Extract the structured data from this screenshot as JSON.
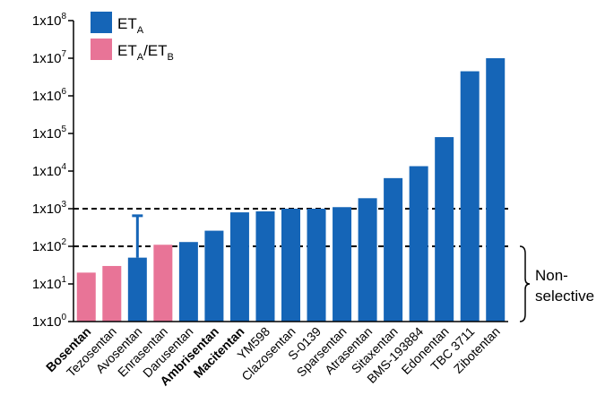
{
  "chart_data": {
    "type": "bar",
    "y_scale": "log",
    "ylim": [
      1,
      100000000
    ],
    "y_ticks": [
      {
        "base": "1x10",
        "exp": "0"
      },
      {
        "base": "1x10",
        "exp": "1"
      },
      {
        "base": "1x10",
        "exp": "2"
      },
      {
        "base": "1x10",
        "exp": "3"
      },
      {
        "base": "1x10",
        "exp": "4"
      },
      {
        "base": "1x10",
        "exp": "5"
      },
      {
        "base": "1x10",
        "exp": "6"
      },
      {
        "base": "1x10",
        "exp": "7"
      },
      {
        "base": "1x10",
        "exp": "8"
      }
    ],
    "categories": [
      "Bosentan",
      "Tezosentan",
      "Avosentan",
      "Enrasentan",
      "Darusentan",
      "Ambrisentan",
      "Macitentan",
      "YM598",
      "Clazosentan",
      "S-0139",
      "Sparsentan",
      "Atrasentan",
      "Sitaxentan",
      "BMS-193884",
      "Edonentan",
      "TBC 3711",
      "Zibotentan"
    ],
    "bold_categories": [
      "Bosentan",
      "Ambrisentan",
      "Macitentan"
    ],
    "values": [
      20,
      30,
      50,
      110,
      130,
      260,
      800,
      850,
      1000,
      1000,
      1100,
      1900,
      6500,
      13500,
      80000,
      4500000,
      10000000
    ],
    "selectivity": [
      "ETA/ETB",
      "ETA/ETB",
      "ETA",
      "ETA/ETB",
      "ETA",
      "ETA",
      "ETA",
      "ETA",
      "ETA",
      "ETA",
      "ETA",
      "ETA",
      "ETA",
      "ETA",
      "ETA",
      "ETA",
      "ETA"
    ],
    "error_bars": [
      {
        "category": "Avosentan",
        "upper": 650
      }
    ],
    "reference_lines": [
      100,
      1000
    ],
    "legend": [
      {
        "key": "ETA",
        "main": "ET",
        "sub": "A",
        "main2": "",
        "sub2": "",
        "color": "#1565b7"
      },
      {
        "key": "ETA/ETB",
        "main": "ET",
        "sub": "A",
        "main2": "/ET",
        "sub2": "B",
        "color": "#e87497"
      }
    ],
    "legend_position": "top-left",
    "annotation": {
      "line1": "Non-",
      "line2": "selective",
      "range": [
        1,
        100
      ]
    },
    "grid": false
  }
}
